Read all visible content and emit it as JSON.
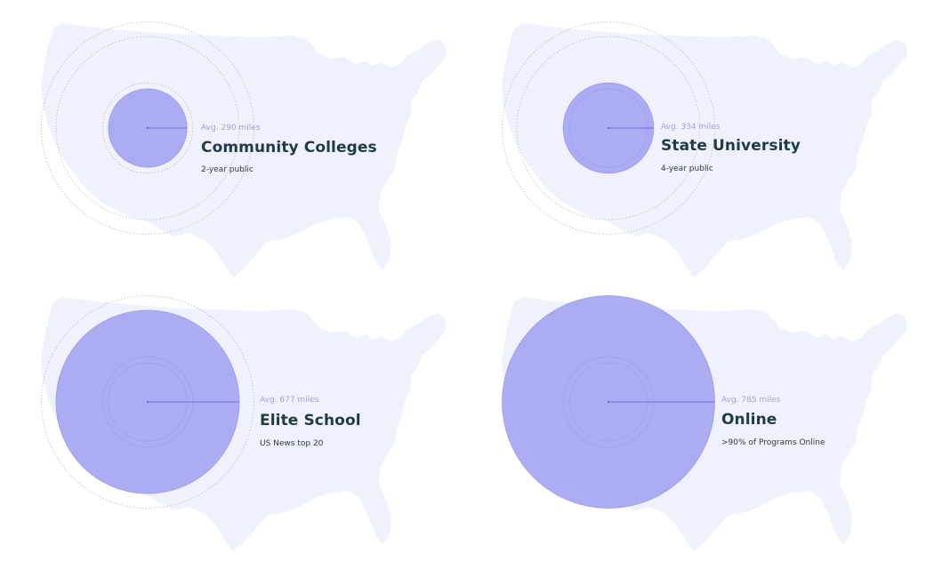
{
  "colors": {
    "map_fill": "#eff2fc",
    "circle_fill": "#a6a6f2",
    "circle_stroke": "#9b9bea",
    "ring_stroke": "#b9bcc4",
    "line": "#6f6fd8",
    "avg_text": "#a29de4",
    "title_text": "#1f3b48",
    "sub_text": "#2b3d47"
  },
  "rings_miles": [
    290,
    334,
    677,
    785
  ],
  "panels": [
    {
      "avg": "Avg. 290 miles",
      "title": "Community Colleges",
      "subtitle": "2-year public",
      "miles": 290
    },
    {
      "avg": "Avg. 334 miles",
      "title": "State University",
      "subtitle": "4-year public",
      "miles": 334
    },
    {
      "avg": "Avg. 677 miles",
      "title": "Elite School",
      "subtitle": "US News top 20",
      "miles": 677
    },
    {
      "avg": "Avg. 785 miles",
      "title": "Online",
      "subtitle": ">90% of Programs Online",
      "miles": 785
    }
  ]
}
